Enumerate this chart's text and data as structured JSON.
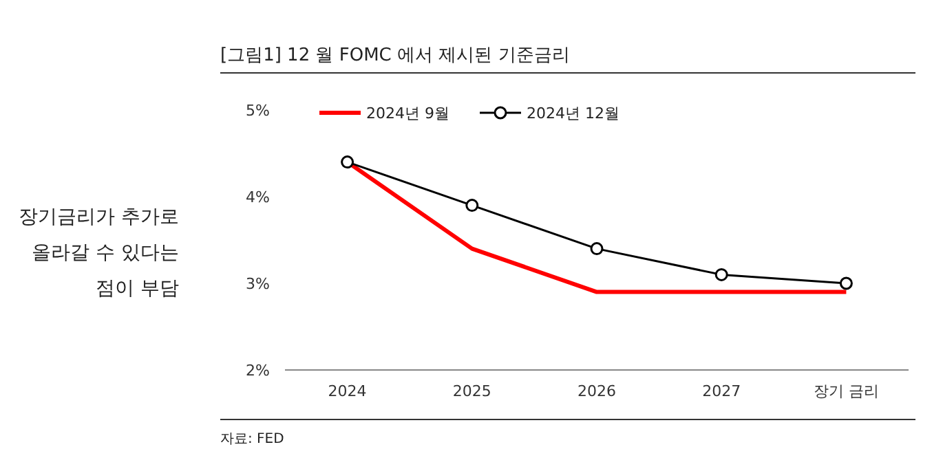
{
  "chart_data": {
    "type": "line",
    "title": "[그림1]    12 월 FOMC 에서 제시된 기준금리",
    "categories": [
      "2024",
      "2025",
      "2026",
      "2027",
      "장기 금리"
    ],
    "series": [
      {
        "name": "2024년 9월",
        "color": "#ff0000",
        "values": [
          4.4,
          3.4,
          2.9,
          2.9,
          2.9
        ],
        "marker": "none"
      },
      {
        "name": "2024년 12월",
        "color": "#000000",
        "values": [
          4.4,
          3.9,
          3.4,
          3.1,
          3.0
        ],
        "marker": "circle"
      }
    ],
    "ylim": [
      2,
      5
    ],
    "yticks": [
      {
        "value": 2,
        "label": "2%"
      },
      {
        "value": 3,
        "label": "3%"
      },
      {
        "value": 4,
        "label": "4%"
      },
      {
        "value": 5,
        "label": "5%"
      }
    ],
    "grid": false,
    "legend": "top left",
    "line_style": "solid",
    "annotations": [
      "장기금리가 추가로\n올라갈 수 있다는\n점이 부담",
      "자료: FED"
    ]
  }
}
